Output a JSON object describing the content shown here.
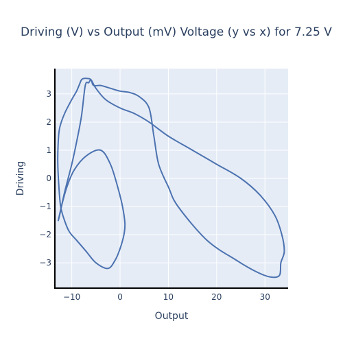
{
  "chart_data": {
    "type": "line",
    "title": "Driving (V) vs Output (mV) Voltage (y vs x) for 7.25 V",
    "xlabel": "Output",
    "ylabel": "Driving",
    "xlim": [
      -13.5,
      34.8
    ],
    "ylim": [
      -3.9,
      3.9
    ],
    "xticks": [
      -10,
      0,
      10,
      20,
      30
    ],
    "xtick_labels": [
      "−10",
      "0",
      "10",
      "20",
      "30"
    ],
    "yticks": [
      -3,
      -2,
      -1,
      0,
      1,
      2,
      3
    ],
    "ytick_labels": [
      "−3",
      "−2",
      "−1",
      "0",
      "1",
      "2",
      "3"
    ],
    "grid": true,
    "legend": "none",
    "series": [
      {
        "color": "#4c72b0",
        "x": [
          -12.8,
          -12.0,
          -11.0,
          -9.5,
          -7.0,
          -4.0,
          -2.0,
          -0.5,
          0.5,
          1.0,
          0.8,
          0.0,
          -1.0,
          -2.5,
          -5.0,
          -7.0,
          -9.0,
          -10.5,
          -11.5,
          -12.3,
          -12.7,
          -12.9,
          -12.8,
          -12.5,
          -11.5,
          -10.0,
          -9.0,
          -8.5,
          -8.0,
          -7.5,
          -6.8,
          -6.0,
          -5.0,
          -3.0,
          0.0,
          3.0,
          6.0,
          10.0,
          15.0,
          20.0,
          25.0,
          29.0,
          32.0,
          33.5,
          34.0,
          33.3,
          33.0,
          31.0,
          28.0,
          24.0,
          18.0,
          12.0,
          10.0,
          8.0,
          7.0,
          6.0,
          4.0,
          2.0,
          0.0,
          -2.0,
          -4.0,
          -5.5,
          -6.0,
          -6.5,
          -7.2,
          -8.0,
          -9.0,
          -10.0,
          -11.5,
          -12.5,
          -12.8
        ],
        "y": [
          -1.5,
          -0.9,
          -0.3,
          0.3,
          0.8,
          1.0,
          0.5,
          -0.3,
          -1.0,
          -1.6,
          -2.0,
          -2.5,
          -2.9,
          -3.2,
          -3.0,
          -2.6,
          -2.2,
          -1.9,
          -1.5,
          -1.0,
          -0.2,
          0.6,
          1.3,
          1.8,
          2.3,
          2.8,
          3.1,
          3.3,
          3.5,
          3.55,
          3.55,
          3.5,
          3.2,
          2.8,
          2.5,
          2.3,
          2.0,
          1.5,
          1.0,
          0.5,
          0.0,
          -0.6,
          -1.3,
          -2.0,
          -2.6,
          -3.0,
          -3.45,
          -3.5,
          -3.3,
          -2.9,
          -2.2,
          -1.0,
          -0.3,
          0.5,
          1.5,
          2.5,
          2.9,
          3.05,
          3.1,
          3.2,
          3.3,
          3.3,
          3.5,
          3.4,
          3.3,
          2.2,
          1.3,
          0.5,
          -0.5,
          -1.3,
          -1.5
        ]
      }
    ]
  }
}
